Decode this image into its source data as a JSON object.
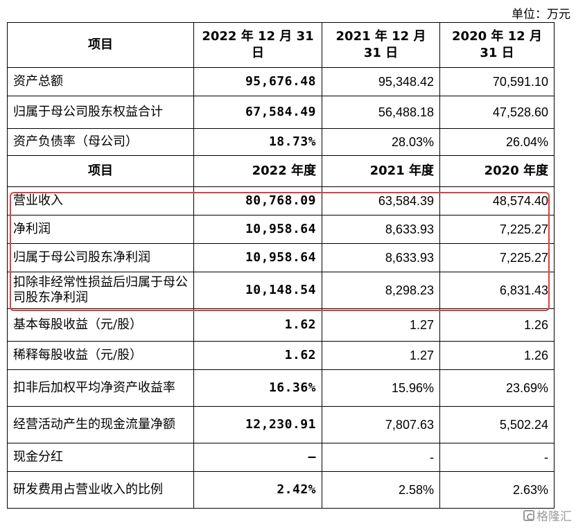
{
  "unit_label": "单位：万元",
  "header": {
    "item": "项目",
    "col1": "2022 年 12 月 31 日",
    "col2": "2021 年 12 月 31 日",
    "col3": "2020 年 12 月 31 日"
  },
  "balance_rows": [
    {
      "label": "资产总额",
      "v2022": "95,676.48",
      "v2021": "95,348.42",
      "v2020": "70,591.10"
    },
    {
      "label": "归属于母公司股东权益合计",
      "v2022": "67,584.49",
      "v2021": "56,488.18",
      "v2020": "47,528.60"
    },
    {
      "label": "资产负债率（母公司）",
      "v2022": "18.73%",
      "v2021": "28.03%",
      "v2020": "26.04%"
    }
  ],
  "header2": {
    "item": "项目",
    "col1": "2022 年度",
    "col2": "2021 年度",
    "col3": "2020 年度"
  },
  "income_rows": [
    {
      "label": "营业收入",
      "v2022": "80,768.09",
      "v2021": "63,584.39",
      "v2020": "48,574.40"
    },
    {
      "label": "净利润",
      "v2022": "10,958.64",
      "v2021": "8,633.93",
      "v2020": "7,225.27"
    },
    {
      "label": "归属于母公司股东净利润",
      "v2022": "10,958.64",
      "v2021": "8,633.93",
      "v2020": "7,225.27"
    },
    {
      "label": "扣除非经常性损益后归属于母公司股东净利润",
      "v2022": "10,148.54",
      "v2021": "8,298.23",
      "v2020": "6,831.43"
    },
    {
      "label": "基本每股收益（元/股）",
      "v2022": "1.62",
      "v2021": "1.27",
      "v2020": "1.26"
    },
    {
      "label": "稀释每股收益（元/股）",
      "v2022": "1.62",
      "v2021": "1.27",
      "v2020": "1.26"
    },
    {
      "label": "扣非后加权平均净资产收益率",
      "v2022": "16.36%",
      "v2021": "15.96%",
      "v2020": "23.69%"
    },
    {
      "label": "经营活动产生的现金流量净额",
      "v2022": "12,230.91",
      "v2021": "7,807.63",
      "v2020": "5,502.24"
    },
    {
      "label": "现金分红",
      "v2022": "–",
      "v2021": "-",
      "v2020": "-"
    },
    {
      "label": "研发费用占营业收入的比例",
      "v2022": "2.42%",
      "v2021": "2.58%",
      "v2020": "2.63%"
    }
  ],
  "watermark": "格隆汇",
  "colors": {
    "highlight_border": "#e33d3d",
    "watermark": "#9a9a9a"
  }
}
